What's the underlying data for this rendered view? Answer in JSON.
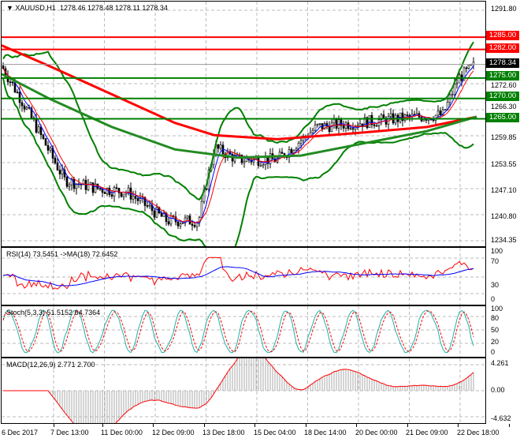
{
  "main": {
    "title": "XAUUSD,H1",
    "ohlc": "1278.46 1278.48 1278.11 1278.34",
    "price_ticks": [
      "1291.80",
      "1272.60",
      "1266.30",
      "1259.85",
      "1253.55",
      "1247.10",
      "1240.80",
      "1234.35"
    ],
    "levels": [
      {
        "label": "1285.00",
        "color": "#ff0000"
      },
      {
        "label": "1282.00",
        "color": "#ff0000"
      },
      {
        "label": "1275.00",
        "color": "#008000"
      },
      {
        "label": "1270.00",
        "color": "#008000"
      },
      {
        "label": "1265.00",
        "color": "#008000"
      }
    ],
    "current": "1278.34"
  },
  "rsi": {
    "title": "RSI(14) 73.5451  ->MA(18) 72.6452",
    "ticks": [
      "100",
      "70",
      "30",
      "0"
    ]
  },
  "stoch": {
    "title": "Stoch(5,3,3) 51.5152 64.7364",
    "ticks": [
      "100",
      "80",
      "50",
      "20",
      "0"
    ]
  },
  "macd": {
    "title": "MACD(12,26,9) 2.771 2.700",
    "ticks": [
      "4.261",
      "0.00",
      "-4.632"
    ]
  },
  "time_axis": [
    "6 Dec 2017",
    "7 Dec 13:00",
    "11 Dec 00:00",
    "12 Dec 09:00",
    "13 Dec 18:00",
    "15 Dec 04:00",
    "18 Dec 14:00",
    "20 Dec 00:00",
    "21 Dec 09:00",
    "22 Dec 18:00"
  ],
  "colors": {
    "up_level": "#ff0000",
    "support": "#008000",
    "rsi": "#ff0000",
    "rsi_ma": "#0000ff",
    "stoch_main": "#20b2aa",
    "stoch_signal": "#ff0000"
  }
}
